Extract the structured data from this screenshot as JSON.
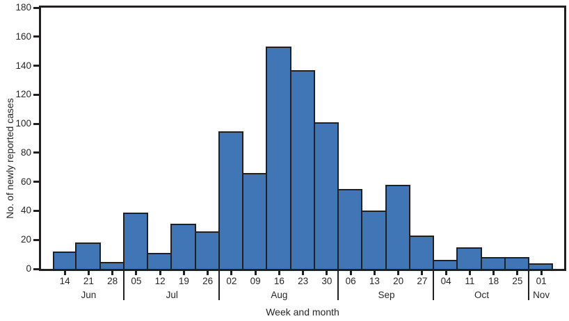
{
  "chart_data": {
    "type": "bar",
    "title": "",
    "xlabel": "Week and month",
    "ylabel": "No. of newly reported cases",
    "ylim": [
      0,
      180
    ],
    "ytick_step": 20,
    "ytick_labels": [
      "0",
      "20",
      "40",
      "60",
      "80",
      "100",
      "120",
      "140",
      "160",
      "180"
    ],
    "grid": "off",
    "legend": "none",
    "bar_color": "#4076B5",
    "bar_edge_color": "#231F20",
    "axis_color": "#231F20",
    "text_color": "#26262B",
    "categories": [
      "14",
      "21",
      "28",
      "05",
      "12",
      "19",
      "26",
      "02",
      "09",
      "16",
      "23",
      "30",
      "06",
      "13",
      "20",
      "27",
      "04",
      "11",
      "18",
      "25",
      "01"
    ],
    "values": [
      12,
      18,
      5,
      39,
      11,
      31,
      26,
      95,
      66,
      153,
      137,
      101,
      55,
      40,
      58,
      23,
      6,
      15,
      8,
      8,
      4
    ],
    "month_groups": [
      {
        "label": "Jun",
        "count": 3
      },
      {
        "label": "Jul",
        "count": 4
      },
      {
        "label": "Aug",
        "count": 5
      },
      {
        "label": "Sep",
        "count": 4
      },
      {
        "label": "Oct",
        "count": 4
      },
      {
        "label": "Nov",
        "count": 1
      }
    ]
  }
}
